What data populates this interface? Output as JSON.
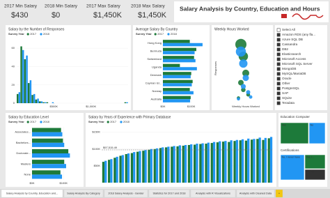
{
  "header": {
    "kpis": [
      {
        "label": "2017 Min Salary",
        "value": "$430"
      },
      {
        "label": "2018 Min Salary",
        "value": "$0"
      },
      {
        "label": "2017 Max Salary",
        "value": "$1,450K"
      },
      {
        "label": "2018 Max Salary",
        "value": "$1,450K"
      }
    ],
    "title": "Salary Analysis by Country, Education and Hours"
  },
  "responses": {
    "type": "histogram",
    "title": "Salary by the Number of Responses",
    "legend_title": "Survey Year",
    "bins": [
      0,
      50000,
      100000,
      150000,
      200000,
      250000,
      300000,
      350000,
      400000,
      450000,
      500000,
      550000,
      600000,
      650000,
      700000,
      750000,
      800000,
      850000,
      900000,
      950000,
      1000000,
      1050000,
      1100000,
      1150000,
      1200000,
      1250000,
      1300000,
      1350000,
      1400000,
      1450000,
      1500000
    ],
    "series": [
      {
        "name": "2017",
        "color": "#1d7a3a",
        "values": [
          10,
          62,
          48,
          22,
          9,
          4,
          2,
          1,
          1,
          0,
          0,
          0,
          0,
          0,
          0,
          0,
          0,
          0,
          0,
          0,
          0,
          0,
          0,
          0,
          0,
          0,
          0,
          0,
          0,
          1
        ]
      },
      {
        "name": "2018",
        "color": "#2196f3",
        "values": [
          12,
          58,
          52,
          25,
          10,
          5,
          2,
          1,
          0,
          1,
          0,
          0,
          0,
          0,
          0,
          0,
          0,
          0,
          0,
          0,
          0,
          0,
          0,
          0,
          0,
          0,
          0,
          0,
          0,
          1
        ]
      }
    ],
    "xlim": [
      0,
      1500000
    ],
    "xticks": [
      {
        "value": 500000,
        "label": "$500K"
      },
      {
        "value": 1000000,
        "label": "$1,000K"
      }
    ],
    "ylim": [
      0,
      70
    ],
    "yticks": [
      0,
      20,
      40,
      60
    ]
  },
  "country": {
    "type": "hbar",
    "title": "Average Salary By Country",
    "legend_title": "Survey Year",
    "categories": [
      "Hong Kong",
      "Bermuda",
      "Switzerland",
      "Uganda",
      "Denmark",
      "Cayman Isl...",
      "Norway",
      "Australia"
    ],
    "series": [
      {
        "name": "2017",
        "color": "#1d7a3a",
        "values": [
          95000,
          118000,
          110000,
          60000,
          100000,
          105000,
          95000,
          98000
        ]
      },
      {
        "name": "2018",
        "color": "#2196f3",
        "values": [
          140000,
          112000,
          115000,
          120000,
          98000,
          102000,
          108000,
          96000
        ]
      }
    ],
    "xlim": [
      0,
      150000
    ],
    "xticks": [
      {
        "value": 0,
        "label": "$0K"
      },
      {
        "value": 100000,
        "label": "$100K"
      }
    ]
  },
  "hours": {
    "type": "scatter",
    "title": "Weekly Hours Worked",
    "x_label": "Weekly Hours Worked",
    "y_label": "Responses",
    "xlim": [
      0,
      100
    ],
    "ylim": [
      0,
      1400
    ],
    "series": [
      {
        "color": "#1d7a3a",
        "x": [
          40,
          45,
          50,
          40,
          45,
          55,
          35
        ],
        "values": [
          1200,
          950,
          600,
          400,
          250,
          150,
          80
        ]
      },
      {
        "color": "#2196f3",
        "x": [
          40,
          45,
          50,
          45,
          55,
          60,
          35
        ],
        "values": [
          1050,
          800,
          500,
          320,
          200,
          100,
          60
        ]
      }
    ]
  },
  "slicer": {
    "items": [
      "Select All",
      "Amazon RDS (any fla...",
      "Azure SQL DB",
      "Cassandra",
      "DB2",
      "Elasticsearch",
      "Microsoft Access",
      "Microsoft SQL Server",
      "MongoDB",
      "MySQL/MariaDB",
      "Oracle",
      "Other",
      "PostgreSQL",
      "SAP",
      "SQLite",
      "Teradata"
    ]
  },
  "education": {
    "type": "hbar",
    "title": "Salary by Education Level",
    "legend_title": "Survey Year",
    "categories": [
      "Associates...",
      "Bachelors...",
      "Doctorate...",
      "Masters",
      "None"
    ],
    "series": [
      {
        "name": "2017",
        "color": "#1d7a3a",
        "values": [
          92000,
          98000,
          115000,
          102000,
          90000
        ]
      },
      {
        "name": "2018",
        "color": "#2196f3",
        "values": [
          96000,
          102000,
          120000,
          108000,
          95000
        ]
      }
    ],
    "xlim": [
      0,
      150000
    ],
    "xticks": [
      {
        "value": 0,
        "label": "$0K"
      },
      {
        "value": 100000,
        "label": "$100K"
      }
    ]
  },
  "experience": {
    "type": "vbar",
    "title": "Salary by Years of Experience with Primary Database",
    "legend_title": "Survey Year",
    "categories": [
      null,
      null,
      null,
      null,
      null,
      null,
      null,
      null,
      null,
      null,
      null,
      null,
      null,
      null,
      null,
      null,
      null,
      null,
      null,
      null,
      null,
      null,
      null,
      null,
      null,
      null,
      null,
      null,
      null,
      null
    ],
    "series": [
      {
        "name": "2017",
        "color": "#1d7a3a",
        "values": [
          62000,
          68000,
          74000,
          80000,
          85000,
          88000,
          92000,
          95000,
          98000,
          100000,
          103000,
          105000,
          107000,
          108000,
          110000,
          112000,
          113000,
          115000,
          116000,
          118000,
          120000,
          122000,
          121000,
          124000,
          126000,
          125000,
          128000,
          130000,
          127000,
          132000
        ]
      },
      {
        "name": "2018",
        "color": "#2196f3",
        "values": [
          65000,
          70000,
          77000,
          82000,
          87000,
          91000,
          94000,
          97000,
          100000,
          102000,
          105000,
          107000,
          109000,
          111000,
          112000,
          114000,
          116000,
          117000,
          119000,
          121000,
          123000,
          124000,
          126000,
          127000,
          129000,
          131000,
          130000,
          134000,
          133000,
          136000
        ]
      }
    ],
    "ylim": [
      0,
      170000
    ],
    "yticks": [
      {
        "value": 50000,
        "label": "$50K"
      },
      {
        "value": 100000,
        "label": "$100K"
      },
      {
        "value": 150000,
        "label": "$150K"
      }
    ],
    "reference": {
      "value": 97515.49,
      "label": "$97,515.49"
    }
  },
  "treemaps": [
    {
      "title": "Education Computer",
      "items": [
        "Yes",
        "No"
      ]
    },
    {
      "title": "Certifications",
      "items": [
        "No, I never have",
        "Yes, I...",
        "No, but I..."
      ]
    }
  ],
  "tabs": [
    "Salary Analysis by Country, Education and...",
    "Salary Analysis By Category",
    "2018 Salary Analysis - Gender",
    "Statistics for 2017 and 2018",
    "Analysis with R Visualizations",
    "Analysis with Cleaned Data",
    "+"
  ]
}
